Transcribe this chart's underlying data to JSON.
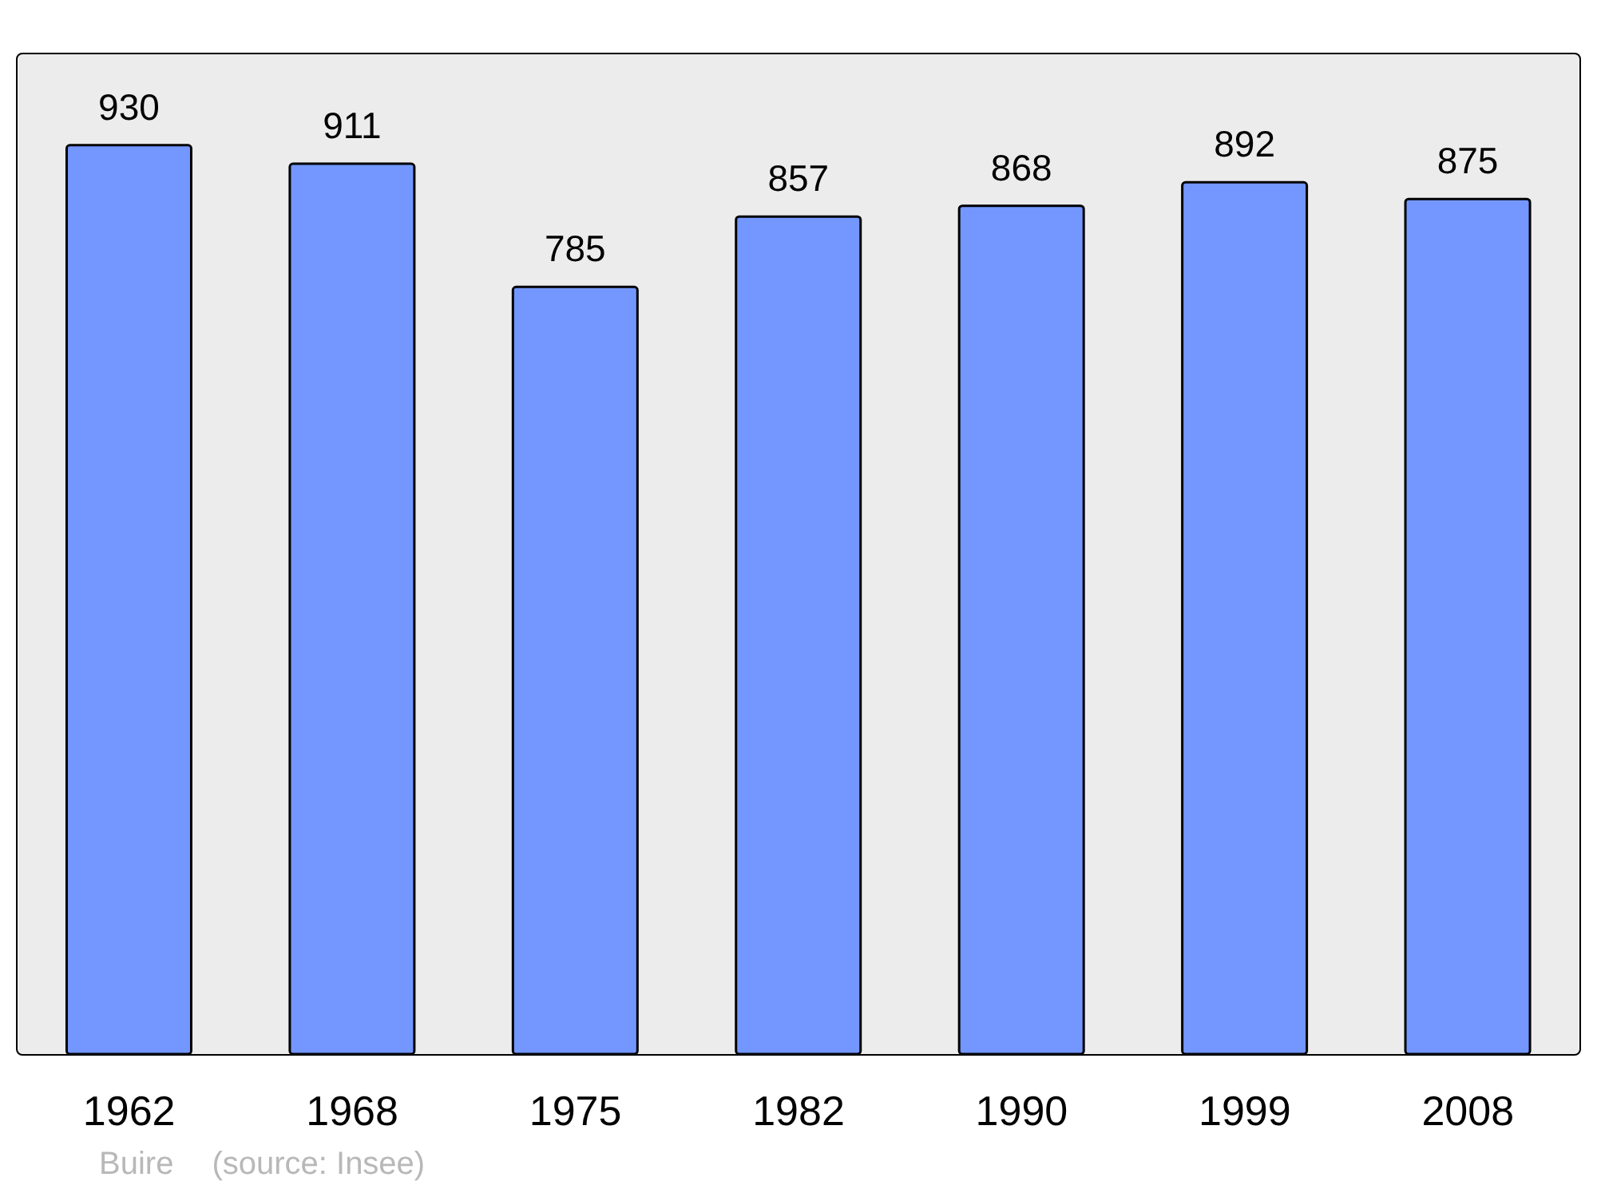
{
  "chart_data": {
    "type": "bar",
    "categories": [
      "1962",
      "1968",
      "1975",
      "1982",
      "1990",
      "1999",
      "2008"
    ],
    "values": [
      930,
      911,
      785,
      857,
      868,
      892,
      875
    ],
    "color": "#7397ff",
    "data_labels": true,
    "annotations": [
      "Buire",
      "(source: Insee)"
    ]
  }
}
